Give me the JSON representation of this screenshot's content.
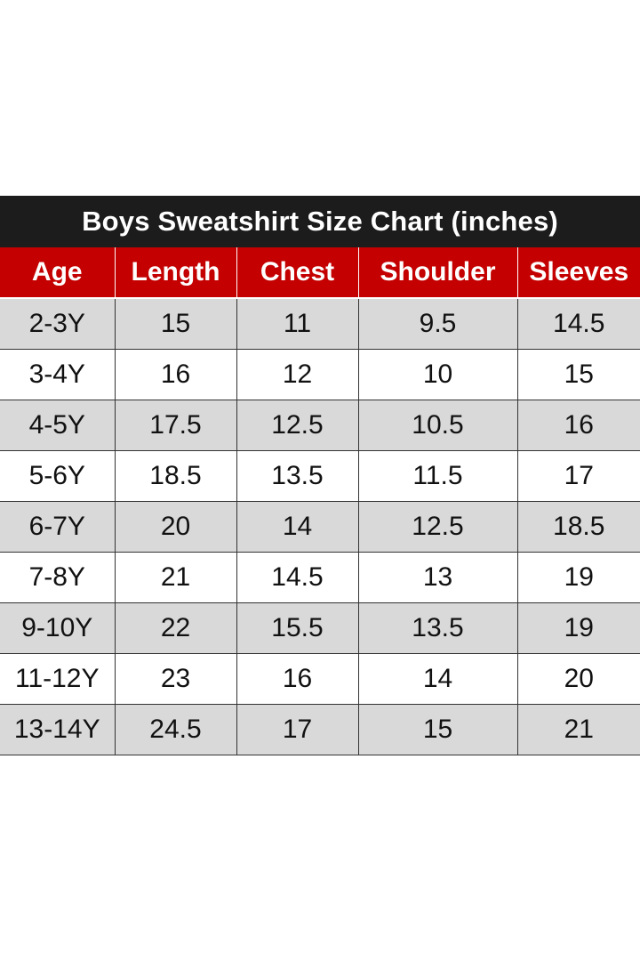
{
  "title": "Boys Sweatshirt Size Chart (inches)",
  "colors": {
    "title_bg": "#1c1c1c",
    "header_bg": "#c40000",
    "row_alt_bg": "#d9d9d9",
    "row_bg": "#ffffff"
  },
  "headers": [
    "Age",
    "Length",
    "Chest",
    "Shoulder",
    "Sleeves"
  ],
  "rows": [
    [
      "2-3Y",
      "15",
      "11",
      "9.5",
      "14.5"
    ],
    [
      "3-4Y",
      "16",
      "12",
      "10",
      "15"
    ],
    [
      "4-5Y",
      "17.5",
      "12.5",
      "10.5",
      "16"
    ],
    [
      "5-6Y",
      "18.5",
      "13.5",
      "11.5",
      "17"
    ],
    [
      "6-7Y",
      "20",
      "14",
      "12.5",
      "18.5"
    ],
    [
      "7-8Y",
      "21",
      "14.5",
      "13",
      "19"
    ],
    [
      "9-10Y",
      "22",
      "15.5",
      "13.5",
      "19"
    ],
    [
      "11-12Y",
      "23",
      "16",
      "14",
      "20"
    ],
    [
      "13-14Y",
      "24.5",
      "17",
      "15",
      "21"
    ]
  ]
}
